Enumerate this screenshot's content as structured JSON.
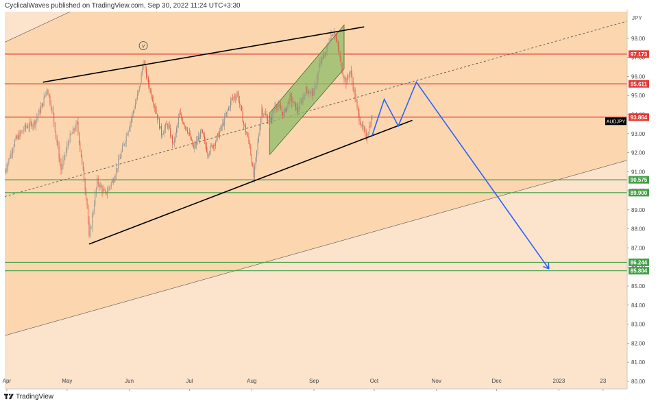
{
  "header": {
    "publisher_line": "CyclicalWaves published on TradingView.com, Sep 30, 2022 11:24 UTC+3:30"
  },
  "footer": {
    "brand": "TradingView",
    "logo_icon": "tradingview-logo-icon"
  },
  "colors": {
    "background_band": "#fbd6ae",
    "background_outer": "#fce3cb",
    "candle_up": "#8a8a8a",
    "candle_down": "#e04e3a",
    "red_level": "#e53935",
    "green_level": "#43a047",
    "projection": "#2962ff",
    "channel_fill": "#8fbc6a"
  },
  "chart_data": {
    "type": "candlestick",
    "symbol": "AUDJPY",
    "current_price_label": "93.864",
    "y_axis_unit": "JPY",
    "ylim": [
      79.6,
      99.4
    ],
    "y_ticks": [
      "98.00",
      "97.00",
      "96.00",
      "95.00",
      "94.00",
      "93.00",
      "92.00",
      "91.00",
      "90.00",
      "89.00",
      "88.00",
      "87.00",
      "86.00",
      "85.00",
      "84.00",
      "83.00",
      "82.00",
      "81.00",
      "80.00"
    ],
    "x_tick_labels": [
      "Apr",
      "May",
      "Jun",
      "Jul",
      "Aug",
      "Sep",
      "Oct",
      "Nov",
      "Dec",
      "2023",
      "23"
    ],
    "x_ticks": [
      "2022-04-01",
      "2022-05-01",
      "2022-06-01",
      "2022-07-01",
      "2022-08-01",
      "2022-09-01",
      "2022-10-01",
      "2022-11-01",
      "2022-12-01",
      "2023-01-01",
      "2023-01-23"
    ],
    "xlim": [
      "2022-03-31",
      "2023-02-04"
    ],
    "horizontal_levels": [
      {
        "price": 97.173,
        "label": "97.173",
        "color": "red"
      },
      {
        "price": 95.611,
        "label": "95.611",
        "color": "red"
      },
      {
        "price": 93.864,
        "label": "93.864",
        "color": "red"
      },
      {
        "price": 90.575,
        "label": "90.575",
        "color": "green"
      },
      {
        "price": 89.9,
        "label": "89.900",
        "color": "green"
      },
      {
        "price": 86.244,
        "label": "86.244",
        "color": "green"
      },
      {
        "price": 85.804,
        "label": "85.804",
        "color": "green"
      }
    ],
    "price_path": [
      [
        "2022-03-31",
        91.0
      ],
      [
        "2022-04-05",
        92.6
      ],
      [
        "2022-04-10",
        93.3
      ],
      [
        "2022-04-15",
        93.6
      ],
      [
        "2022-04-19",
        94.6
      ],
      [
        "2022-04-21",
        95.4
      ],
      [
        "2022-04-24",
        94.0
      ],
      [
        "2022-04-28",
        91.1
      ],
      [
        "2022-05-02",
        92.7
      ],
      [
        "2022-05-06",
        93.5
      ],
      [
        "2022-05-09",
        91.0
      ],
      [
        "2022-05-11",
        89.3
      ],
      [
        "2022-05-12",
        87.5
      ],
      [
        "2022-05-16",
        90.5
      ],
      [
        "2022-05-20",
        89.8
      ],
      [
        "2022-05-24",
        90.6
      ],
      [
        "2022-05-28",
        92.0
      ],
      [
        "2022-06-02",
        93.8
      ],
      [
        "2022-06-06",
        95.4
      ],
      [
        "2022-06-08",
        96.8
      ],
      [
        "2022-06-10",
        95.8
      ],
      [
        "2022-06-14",
        94.3
      ],
      [
        "2022-06-17",
        93.0
      ],
      [
        "2022-06-20",
        93.5
      ],
      [
        "2022-06-23",
        92.4
      ],
      [
        "2022-06-26",
        94.0
      ],
      [
        "2022-06-30",
        93.2
      ],
      [
        "2022-07-03",
        92.2
      ],
      [
        "2022-07-07",
        93.1
      ],
      [
        "2022-07-10",
        92.0
      ],
      [
        "2022-07-14",
        92.6
      ],
      [
        "2022-07-18",
        93.6
      ],
      [
        "2022-07-22",
        94.8
      ],
      [
        "2022-07-25",
        95.1
      ],
      [
        "2022-07-28",
        93.5
      ],
      [
        "2022-07-31",
        92.4
      ],
      [
        "2022-08-02",
        90.7
      ],
      [
        "2022-08-04",
        92.5
      ],
      [
        "2022-08-06",
        94.3
      ],
      [
        "2022-08-10",
        93.5
      ],
      [
        "2022-08-13",
        94.6
      ],
      [
        "2022-08-17",
        94.0
      ],
      [
        "2022-08-20",
        94.9
      ],
      [
        "2022-08-24",
        94.2
      ],
      [
        "2022-08-28",
        95.3
      ],
      [
        "2022-09-01",
        95.1
      ],
      [
        "2022-09-04",
        96.7
      ],
      [
        "2022-09-07",
        97.3
      ],
      [
        "2022-09-09",
        98.1
      ],
      [
        "2022-09-11",
        98.4
      ],
      [
        "2022-09-13",
        97.5
      ],
      [
        "2022-09-15",
        96.3
      ],
      [
        "2022-09-17",
        95.7
      ],
      [
        "2022-09-19",
        96.3
      ],
      [
        "2022-09-21",
        95.2
      ],
      [
        "2022-09-23",
        94.0
      ],
      [
        "2022-09-25",
        93.3
      ],
      [
        "2022-09-27",
        92.8
      ],
      [
        "2022-09-30",
        93.9
      ]
    ],
    "projection_path": [
      [
        "2022-09-30",
        92.9
      ],
      [
        "2022-10-06",
        94.8
      ],
      [
        "2022-10-13",
        93.4
      ],
      [
        "2022-10-22",
        95.7
      ],
      [
        "2022-12-27",
        85.9
      ]
    ],
    "trendlines": [
      {
        "name": "upper-channel-line",
        "style": "solid",
        "points": [
          [
            "2022-04-19",
            95.7
          ],
          [
            "2022-09-26",
            98.6
          ]
        ]
      },
      {
        "name": "lower-support-line",
        "style": "solid",
        "points": [
          [
            "2022-05-12",
            87.2
          ],
          [
            "2022-10-20",
            93.7
          ]
        ]
      },
      {
        "name": "outer-channel-upper",
        "style": "thin",
        "points": [
          [
            "2022-03-31",
            97.8
          ],
          [
            "2022-05-25",
            100.5
          ]
        ]
      },
      {
        "name": "outer-channel-lower",
        "style": "thin",
        "points": [
          [
            "2022-03-31",
            82.4
          ],
          [
            "2023-02-04",
            91.6
          ]
        ]
      },
      {
        "name": "dashed-midline",
        "style": "dashed",
        "points": [
          [
            "2022-03-31",
            89.7
          ],
          [
            "2023-02-04",
            98.9
          ]
        ]
      }
    ],
    "green_channel": [
      [
        "2022-08-10",
        94.1
      ],
      [
        "2022-09-16",
        98.7
      ],
      [
        "2022-09-16",
        96.4
      ],
      [
        "2022-08-10",
        91.9
      ]
    ],
    "peak_marker": {
      "date": "2022-06-08",
      "price": 97.4,
      "label": "v"
    }
  }
}
